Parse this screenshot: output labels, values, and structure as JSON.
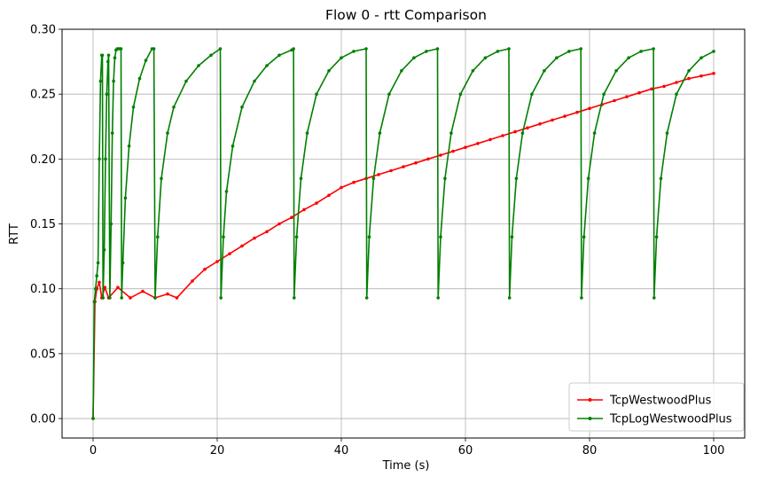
{
  "chart_data": {
    "type": "line",
    "title": "Flow 0 - rtt Comparison",
    "xlabel": "Time (s)",
    "ylabel": "RTT",
    "xlim": [
      -5,
      105
    ],
    "ylim": [
      -0.015,
      0.3
    ],
    "xticks": [
      0,
      20,
      40,
      60,
      80,
      100
    ],
    "xtick_labels": [
      "0",
      "20",
      "40",
      "60",
      "80",
      "100"
    ],
    "yticks": [
      0.0,
      0.05,
      0.1,
      0.15,
      0.2,
      0.25,
      0.3
    ],
    "ytick_labels": [
      "0.00",
      "0.05",
      "0.10",
      "0.15",
      "0.20",
      "0.25",
      "0.30"
    ],
    "grid": true,
    "legend_position": "lower-right",
    "series": [
      {
        "name": "TcpWestwoodPlus",
        "color": "#ff0000",
        "marker": "dot",
        "x": [
          0,
          0.3,
          0.6,
          1.0,
          1.4,
          1.9,
          2.5,
          4,
          6,
          8,
          10,
          12,
          13.5,
          16,
          18,
          20,
          22,
          24,
          26,
          28,
          30,
          32,
          34,
          36,
          38,
          40,
          42,
          44,
          46,
          48,
          50,
          52,
          54,
          56,
          58,
          60,
          62,
          64,
          66,
          68,
          70,
          72,
          74,
          76,
          78,
          80,
          82,
          84,
          86,
          88,
          90,
          92,
          94,
          96,
          98,
          100
        ],
        "y": [
          0.0,
          0.09,
          0.1,
          0.105,
          0.093,
          0.101,
          0.093,
          0.101,
          0.093,
          0.098,
          0.093,
          0.096,
          0.093,
          0.106,
          0.115,
          0.121,
          0.127,
          0.133,
          0.139,
          0.144,
          0.15,
          0.155,
          0.161,
          0.166,
          0.172,
          0.178,
          0.182,
          0.185,
          0.188,
          0.191,
          0.194,
          0.197,
          0.2,
          0.203,
          0.206,
          0.209,
          0.212,
          0.215,
          0.218,
          0.221,
          0.224,
          0.227,
          0.23,
          0.233,
          0.236,
          0.239,
          0.242,
          0.245,
          0.248,
          0.251,
          0.254,
          0.256,
          0.259,
          0.262,
          0.264,
          0.266
        ]
      },
      {
        "name": "TcpLogWestwoodPlus",
        "color": "#008000",
        "marker": "dot",
        "x": [
          0,
          0.2,
          0.4,
          0.6,
          0.8,
          1.0,
          1.2,
          1.4,
          1.5,
          1.6,
          1.8,
          2.0,
          2.2,
          2.4,
          2.5,
          2.7,
          2.9,
          3.1,
          3.3,
          3.5,
          3.7,
          3.9,
          4.1,
          4.3,
          4.5,
          4.6,
          4.8,
          5.2,
          5.8,
          6.5,
          7.5,
          8.5,
          9.5,
          9.8,
          10.0,
          10.4,
          11,
          12,
          13,
          15,
          17,
          19,
          20.5,
          20.6,
          21,
          21.5,
          22.5,
          24,
          26,
          28,
          30,
          32,
          32.3,
          32.4,
          32.8,
          33.5,
          34.5,
          36,
          38,
          40,
          42,
          44,
          44.1,
          44.5,
          45.2,
          46.2,
          47.7,
          49.7,
          51.7,
          53.7,
          55.5,
          55.6,
          56.0,
          56.7,
          57.7,
          59.2,
          61.2,
          63.2,
          65.2,
          67,
          67.1,
          67.5,
          68.2,
          69.2,
          70.7,
          72.7,
          74.7,
          76.7,
          78.6,
          78.7,
          79.1,
          79.8,
          80.8,
          82.3,
          84.3,
          86.3,
          88.3,
          90.3,
          90.4,
          90.8,
          91.5,
          92.5,
          94,
          96,
          98,
          100
        ],
        "y": [
          0.0,
          0.09,
          0.1,
          0.11,
          0.12,
          0.2,
          0.26,
          0.28,
          0.28,
          0.093,
          0.13,
          0.2,
          0.25,
          0.275,
          0.28,
          0.093,
          0.15,
          0.22,
          0.26,
          0.278,
          0.284,
          0.285,
          0.285,
          0.285,
          0.285,
          0.093,
          0.12,
          0.17,
          0.21,
          0.24,
          0.262,
          0.276,
          0.285,
          0.285,
          0.093,
          0.14,
          0.185,
          0.22,
          0.24,
          0.26,
          0.272,
          0.28,
          0.285,
          0.093,
          0.14,
          0.175,
          0.21,
          0.24,
          0.26,
          0.272,
          0.28,
          0.284,
          0.285,
          0.093,
          0.14,
          0.185,
          0.22,
          0.25,
          0.268,
          0.278,
          0.283,
          0.285,
          0.093,
          0.14,
          0.185,
          0.22,
          0.25,
          0.268,
          0.278,
          0.283,
          0.285,
          0.093,
          0.14,
          0.185,
          0.22,
          0.25,
          0.268,
          0.278,
          0.283,
          0.285,
          0.093,
          0.14,
          0.185,
          0.22,
          0.25,
          0.268,
          0.278,
          0.283,
          0.285,
          0.093,
          0.14,
          0.185,
          0.22,
          0.25,
          0.268,
          0.278,
          0.283,
          0.285,
          0.093,
          0.14,
          0.185,
          0.22,
          0.25,
          0.268,
          0.278,
          0.283
        ]
      }
    ]
  }
}
